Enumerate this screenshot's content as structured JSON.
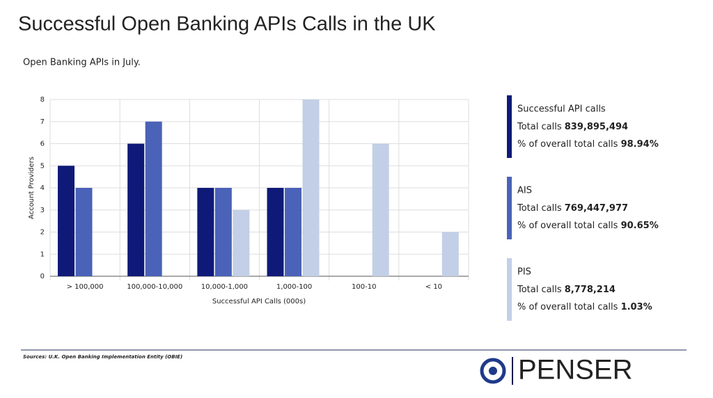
{
  "chart_data": {
    "type": "bar",
    "slide_title": "Successful Open Banking APIs Calls in the UK",
    "title": "Open Banking APIs in July.",
    "x_label": "Successful API Calls (000s)",
    "y_label": "Account Providers",
    "categories": [
      "> 100,000",
      "100,000-10,000",
      "10,000-1,000",
      "1,000-100",
      "100-10",
      "< 10"
    ],
    "series": [
      {
        "name": "Successful API calls",
        "color": "#0f1a78",
        "values": [
          5,
          6,
          4,
          4,
          null,
          null
        ],
        "total_calls": "839,895,494",
        "share": "98.94%"
      },
      {
        "name": "AIS",
        "color": "#4a63b8",
        "values": [
          4,
          7,
          4,
          4,
          null,
          null
        ],
        "total_calls": "769,447,977",
        "share": "90.65%"
      },
      {
        "name": "PIS",
        "color": "#c2cfe6",
        "values": [
          null,
          null,
          3,
          8,
          6,
          2
        ],
        "total_calls": "8,778,214",
        "share": "1.03%"
      }
    ],
    "legend_total_label": "Total calls",
    "legend_share_label": "% of overall total calls",
    "ylim": [
      0,
      8
    ],
    "yticks": [
      0,
      1,
      2,
      3,
      4,
      5,
      6,
      7,
      8
    ],
    "grid": true,
    "source": "Sources: U.K. Open Banking Implementation Entity (OBIE)",
    "logo": "PENSER"
  }
}
